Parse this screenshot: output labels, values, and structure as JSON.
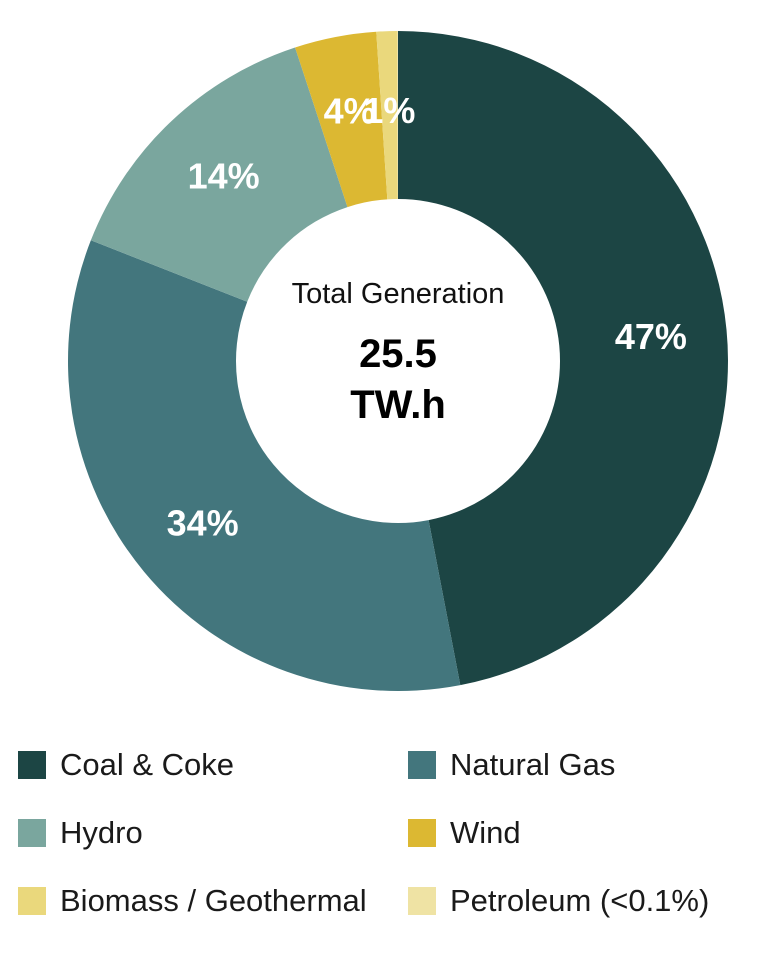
{
  "chart_data": {
    "type": "pie",
    "donut": true,
    "center_title": "Total Generation",
    "center_value_line1": "25.5",
    "center_value_line2": "TW.h",
    "slices": [
      {
        "name": "Coal & Coke",
        "value": 47,
        "label": "47%",
        "color": "#1c4544"
      },
      {
        "name": "Natural Gas",
        "value": 34,
        "label": "34%",
        "color": "#43767d"
      },
      {
        "name": "Hydro",
        "value": 14,
        "label": "14%",
        "color": "#7aa69e"
      },
      {
        "name": "Wind",
        "value": 4,
        "label": "4%",
        "color": "#dcb832"
      },
      {
        "name": "Biomass / Geothermal",
        "value": 1,
        "label": "1%",
        "color": "#ead87c"
      },
      {
        "name": "Petroleum (<0.1%)",
        "value": 0.05,
        "label": "",
        "color": "#efe3a4"
      }
    ],
    "legend": [
      {
        "label": "Coal & Coke",
        "color": "#1c4544"
      },
      {
        "label": "Natural Gas",
        "color": "#43767d"
      },
      {
        "label": "Hydro",
        "color": "#7aa69e"
      },
      {
        "label": "Wind",
        "color": "#dcb832"
      },
      {
        "label": "Biomass / Geothermal",
        "color": "#ead87c"
      },
      {
        "label": "Petroleum (<0.1%)",
        "color": "#efe3a4"
      }
    ],
    "legend_placement": "bottom"
  }
}
